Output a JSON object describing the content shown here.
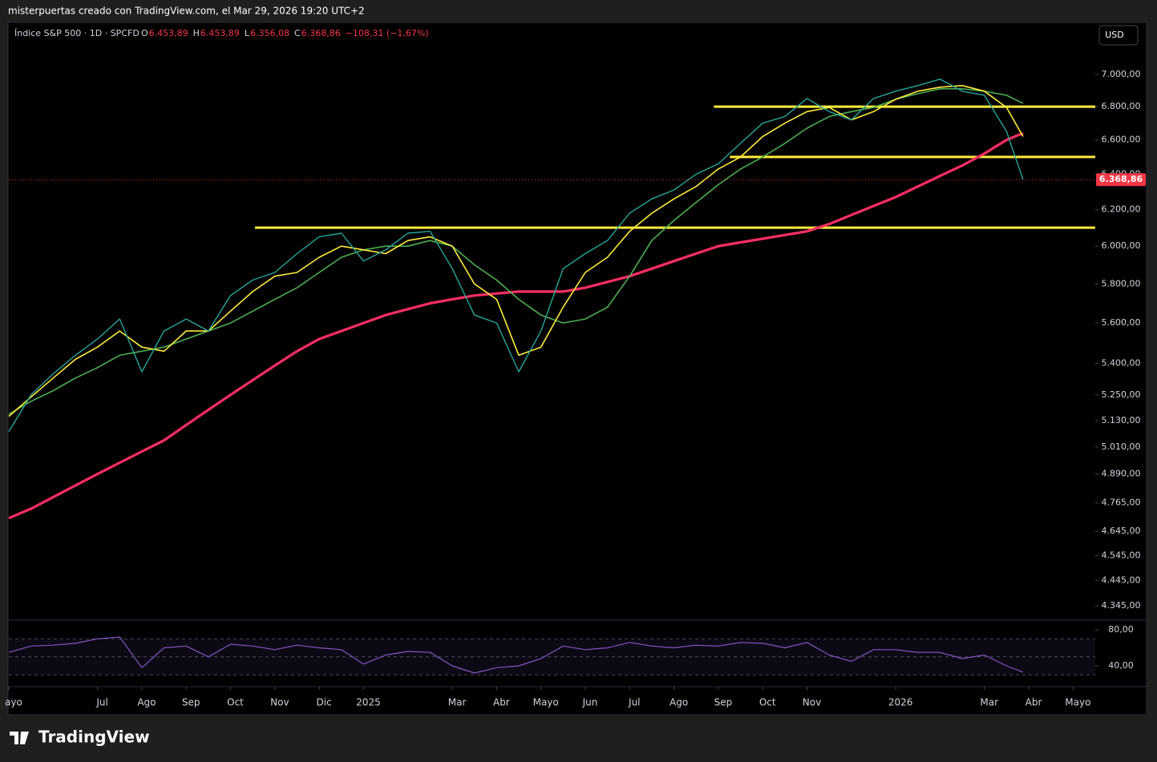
{
  "chart_data": {
    "type": "line",
    "attribution": "misterpuertas creado con TradingView.com, el Mar 29, 2026 19:20 UTC+2",
    "symbol": "Índice S&P 500 · 1D · SPCFD",
    "ohlc": [
      {
        "key": "O",
        "value": "6.453,89"
      },
      {
        "key": "H",
        "value": "6.453,89"
      },
      {
        "key": "L",
        "value": "6.356,08"
      },
      {
        "key": "C",
        "value": "6.368,86"
      }
    ],
    "change": "−108,31 (−1,67%)",
    "currency": "USD",
    "brand": "TradingView",
    "log_scale": true,
    "x": [
      0,
      0.5,
      1,
      1.5,
      2,
      2.5,
      3,
      3.5,
      4,
      4.5,
      5,
      5.5,
      6,
      6.5,
      7,
      7.5,
      8,
      8.5,
      9,
      9.5,
      10,
      10.5,
      11,
      11.5,
      12,
      12.5,
      13,
      13.5,
      14,
      14.5,
      15,
      15.5,
      16,
      16.5,
      17,
      17.5,
      18,
      18.5,
      19,
      19.5,
      20,
      20.5,
      21,
      21.5,
      22,
      22.5,
      22.87
    ],
    "xlim": [
      0,
      24.5
    ],
    "xticks": [
      {
        "value": 0,
        "label": "ayo"
      },
      {
        "value": 2,
        "label": "Jul"
      },
      {
        "value": 3,
        "label": "Ago"
      },
      {
        "value": 4,
        "label": "Sep"
      },
      {
        "value": 5,
        "label": "Oct"
      },
      {
        "value": 6,
        "label": "Nov"
      },
      {
        "value": 7,
        "label": "Dic"
      },
      {
        "value": 8,
        "label": "2025"
      },
      {
        "value": 10,
        "label": "Mar"
      },
      {
        "value": 11,
        "label": "Abr"
      },
      {
        "value": 12,
        "label": "Mayo"
      },
      {
        "value": 13,
        "label": "Jun"
      },
      {
        "value": 14,
        "label": "Jul"
      },
      {
        "value": 15,
        "label": "Ago"
      },
      {
        "value": 16,
        "label": "Sep"
      },
      {
        "value": 17,
        "label": "Oct"
      },
      {
        "value": 18,
        "label": "Nov"
      },
      {
        "value": 20,
        "label": "2026"
      },
      {
        "value": 22,
        "label": "Mar"
      },
      {
        "value": 23,
        "label": "Abr"
      },
      {
        "value": 24,
        "label": "Mayo"
      }
    ],
    "ylim": [
      4292,
      7334
    ],
    "yticks": [
      {
        "value": 7000,
        "label": "7.000,00"
      },
      {
        "value": 6800,
        "label": "6.800,00"
      },
      {
        "value": 6600,
        "label": "6.600,00"
      },
      {
        "value": 6400,
        "label": "6.400,00"
      },
      {
        "value": 6200,
        "label": "6.200,00"
      },
      {
        "value": 6000,
        "label": "6.000,00"
      },
      {
        "value": 5800,
        "label": "5.800,00"
      },
      {
        "value": 5600,
        "label": "5.600,00"
      },
      {
        "value": 5400,
        "label": "5.400,00"
      },
      {
        "value": 5250,
        "label": "5.250,00"
      },
      {
        "value": 5130,
        "label": "5.130,00"
      },
      {
        "value": 5010,
        "label": "5.010,00"
      },
      {
        "value": 4890,
        "label": "4.890,00"
      },
      {
        "value": 4765,
        "label": "4.765,00"
      },
      {
        "value": 4645,
        "label": "4.645,00"
      },
      {
        "value": 4545,
        "label": "4.545,00"
      },
      {
        "value": 4445,
        "label": "4.445,00"
      },
      {
        "value": 4345,
        "label": "4.345,00"
      }
    ],
    "series": [
      {
        "color": "#26a69a",
        "width": 1.4,
        "values": [
          5080,
          5250,
          5350,
          5440,
          5520,
          5620,
          5360,
          5560,
          5620,
          5560,
          5740,
          5820,
          5860,
          5960,
          6050,
          6070,
          5920,
          5980,
          6070,
          6080,
          5880,
          5640,
          5600,
          5360,
          5560,
          5880,
          5960,
          6030,
          6180,
          6260,
          6310,
          6400,
          6460,
          6580,
          6700,
          6740,
          6850,
          6770,
          6720,
          6850,
          6895,
          6930,
          6970,
          6895,
          6870,
          6650,
          6368.86
        ]
      },
      {
        "color": "#ffeb3b",
        "width": 1.6,
        "values": [
          5150,
          5240,
          5330,
          5420,
          5480,
          5560,
          5480,
          5460,
          5560,
          5560,
          5660,
          5760,
          5840,
          5860,
          5940,
          6000,
          5980,
          5960,
          6030,
          6050,
          6000,
          5800,
          5720,
          5440,
          5480,
          5680,
          5860,
          5940,
          6080,
          6180,
          6260,
          6330,
          6430,
          6500,
          6620,
          6700,
          6770,
          6795,
          6720,
          6770,
          6845,
          6895,
          6920,
          6930,
          6895,
          6795,
          6620
        ]
      },
      {
        "color": "#4caf50",
        "width": 1.6,
        "values": [
          5160,
          5220,
          5270,
          5330,
          5380,
          5440,
          5460,
          5480,
          5520,
          5560,
          5600,
          5660,
          5720,
          5780,
          5860,
          5940,
          5980,
          6000,
          6000,
          6030,
          6000,
          5900,
          5820,
          5720,
          5640,
          5600,
          5620,
          5680,
          5840,
          6030,
          6140,
          6240,
          6340,
          6430,
          6500,
          6580,
          6670,
          6740,
          6770,
          6795,
          6845,
          6880,
          6910,
          6910,
          6895,
          6870,
          6820
        ]
      },
      {
        "color": "#ff2e63",
        "width": 3.2,
        "values": [
          4700,
          4740,
          4790,
          4840,
          4890,
          4940,
          4990,
          5040,
          5110,
          5180,
          5250,
          5320,
          5390,
          5460,
          5520,
          5560,
          5600,
          5640,
          5670,
          5700,
          5720,
          5740,
          5750,
          5760,
          5760,
          5760,
          5780,
          5810,
          5840,
          5880,
          5920,
          5960,
          6000,
          6020,
          6040,
          6060,
          6080,
          6120,
          6170,
          6220,
          6270,
          6330,
          6390,
          6450,
          6520,
          6600,
          6640
        ]
      }
    ],
    "levels": [
      {
        "value": 6800,
        "x0": 15.9,
        "color": "#ffeb3b"
      },
      {
        "value": 6500,
        "x0": 16.26,
        "color": "#ffeb3b"
      },
      {
        "value": 6100,
        "x0": 5.55,
        "color": "#ffeb3b"
      }
    ],
    "rsi": {
      "color": "#7e57c2",
      "ylim": [
        18.7,
        89.8
      ],
      "yticks": [
        {
          "value": 80,
          "label": "80,00"
        },
        {
          "value": 40,
          "label": "40,00"
        }
      ],
      "bands": [
        70,
        50,
        30
      ],
      "values": [
        55,
        62,
        63,
        65,
        70,
        72,
        38,
        60,
        62,
        50,
        64,
        62,
        58,
        63,
        60,
        58,
        42,
        52,
        56,
        55,
        40,
        32,
        38,
        40,
        48,
        62,
        58,
        60,
        66,
        62,
        60,
        63,
        62,
        66,
        65,
        60,
        66,
        52,
        45,
        58,
        58,
        55,
        55,
        48,
        52,
        40,
        33
      ]
    }
  }
}
